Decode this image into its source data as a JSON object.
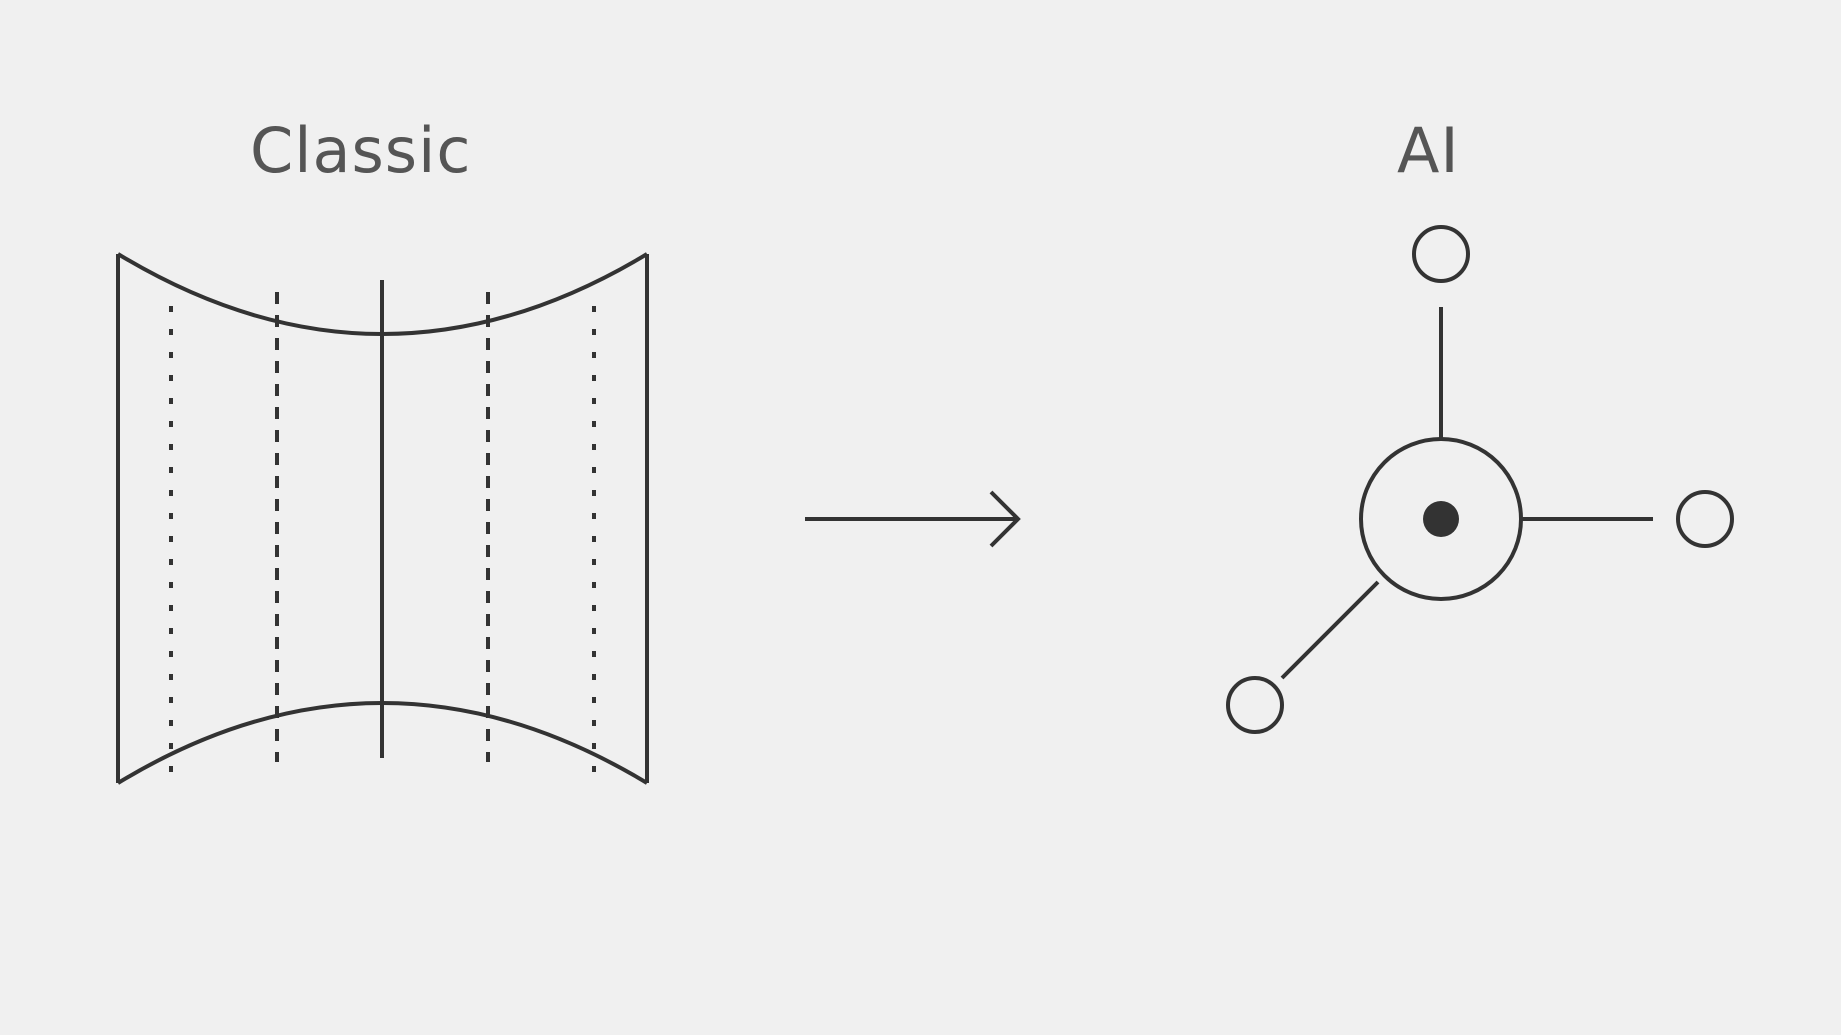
{
  "labels": {
    "classic": "Classic",
    "ai": "AI"
  },
  "colors": {
    "background": "#f0f0f0",
    "stroke": "#333333",
    "text": "#555555"
  },
  "icons": {
    "classic": "curved-grid-panel-icon",
    "transition": "arrow-right-icon",
    "ai": "hub-and-nodes-icon"
  }
}
